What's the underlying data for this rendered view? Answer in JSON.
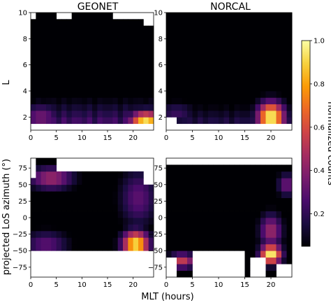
{
  "chart_data": [
    {
      "type": "heatmap",
      "title": "GEONET",
      "xlabel": "",
      "ylabel": "L",
      "xlim": [
        0,
        24
      ],
      "ylim": [
        1,
        10
      ],
      "x_ticks": [
        "0",
        "5",
        "10",
        "15",
        "20"
      ],
      "x_tick_values": [
        0,
        5,
        10,
        15,
        20
      ],
      "y_ticks": [
        "2",
        "4",
        "6",
        "8",
        "10"
      ],
      "y_tick_values": [
        2,
        4,
        6,
        8,
        10
      ],
      "hot_spots": [
        {
          "x": 22.5,
          "y": 1.6,
          "value": 0.95,
          "sx": 2.2,
          "sy": 0.6
        },
        {
          "x": 2.0,
          "y": 2.0,
          "value": 0.35,
          "sx": 2.5,
          "sy": 0.7
        }
      ],
      "base_gradient": {
        "low_y": 1.0,
        "high_y": 4.0,
        "value_at_low": 0.35
      },
      "empty_regions": [
        {
          "x0": 0,
          "x1": 24,
          "y0": 1.0,
          "y1": 1.4
        },
        {
          "x0": 0,
          "x1": 1,
          "y0": 9.3,
          "y1": 10
        },
        {
          "x0": 5,
          "x1": 8,
          "y0": 9.6,
          "y1": 10
        },
        {
          "x0": 16,
          "x1": 24,
          "y0": 9.7,
          "y1": 10
        },
        {
          "x0": 22,
          "x1": 24,
          "y0": 8.8,
          "y1": 10
        }
      ]
    },
    {
      "type": "heatmap",
      "title": "NORCAL",
      "xlabel": "",
      "ylabel": "",
      "xlim": [
        0,
        24
      ],
      "ylim": [
        1,
        10
      ],
      "x_ticks": [
        "0",
        "5",
        "10",
        "15",
        "20"
      ],
      "x_tick_values": [
        0,
        5,
        10,
        15,
        20
      ],
      "y_ticks": [
        "2",
        "4",
        "6",
        "8",
        "10"
      ],
      "y_tick_values": [
        2,
        4,
        6,
        8,
        10
      ],
      "hot_spots": [
        {
          "x": 20.0,
          "y": 2.0,
          "value": 1.0,
          "sx": 1.8,
          "sy": 0.8
        },
        {
          "x": 2.0,
          "y": 2.3,
          "value": 0.22,
          "sx": 2.5,
          "sy": 0.6
        }
      ],
      "base_gradient": {
        "low_y": 1.5,
        "high_y": 3.5,
        "value_at_low": 0.2
      },
      "empty_regions": [
        {
          "x0": 0,
          "x1": 24,
          "y0": 1.0,
          "y1": 1.6
        },
        {
          "x0": 0,
          "x1": 2,
          "y0": 1.0,
          "y1": 2.2
        }
      ]
    },
    {
      "type": "heatmap",
      "title": "",
      "xlabel": "",
      "ylabel": "projected LoS azimuth (°)",
      "xlim": [
        0,
        24
      ],
      "ylim": [
        -90,
        90
      ],
      "x_ticks": [
        "0",
        "5",
        "10",
        "15",
        "20"
      ],
      "x_tick_values": [
        0,
        5,
        10,
        15,
        20
      ],
      "y_ticks": [
        "−75",
        "−50",
        "−25",
        "0",
        "25",
        "50",
        "75"
      ],
      "y_tick_values": [
        -75,
        -50,
        -25,
        0,
        25,
        50,
        75
      ],
      "hot_spots": [
        {
          "x": 20.5,
          "y": -40,
          "value": 0.95,
          "sx": 1.8,
          "sy": 14
        },
        {
          "x": 4.0,
          "y": 60,
          "value": 0.45,
          "sx": 3.0,
          "sy": 12
        },
        {
          "x": 3.0,
          "y": -40,
          "value": 0.3,
          "sx": 3.0,
          "sy": 14
        },
        {
          "x": 21.0,
          "y": 30,
          "value": 0.3,
          "sx": 2.5,
          "sy": 30
        }
      ],
      "base_gradient": null,
      "empty_regions": [
        {
          "x0": 0,
          "x1": 24,
          "y0": -90,
          "y1": -52
        },
        {
          "x0": 0,
          "x1": 1,
          "y0": 65,
          "y1": 90
        },
        {
          "x0": 5,
          "x1": 24,
          "y0": 72,
          "y1": 90
        },
        {
          "x0": 22,
          "x1": 24,
          "y0": 55,
          "y1": 90
        },
        {
          "x0": 20,
          "x1": 21,
          "y0": -90,
          "y1": -62
        }
      ]
    },
    {
      "type": "heatmap",
      "title": "",
      "xlabel": "",
      "ylabel": "",
      "xlim": [
        0,
        24
      ],
      "ylim": [
        -90,
        90
      ],
      "x_ticks": [
        "0",
        "5",
        "10",
        "15",
        "20"
      ],
      "x_tick_values": [
        0,
        5,
        10,
        15,
        20
      ],
      "y_ticks": [
        "−75",
        "−50",
        "−25",
        "0",
        "25",
        "50",
        "75"
      ],
      "y_tick_values": [
        -75,
        -50,
        -25,
        0,
        25,
        50,
        75
      ],
      "hot_spots": [
        {
          "x": 20.0,
          "y": -55,
          "value": 1.0,
          "sx": 1.4,
          "sy": 10
        },
        {
          "x": 20.0,
          "y": -20,
          "value": 0.45,
          "sx": 1.5,
          "sy": 18
        },
        {
          "x": 3.0,
          "y": -65,
          "value": 0.55,
          "sx": 1.8,
          "sy": 8
        },
        {
          "x": 23.0,
          "y": 50,
          "value": 0.35,
          "sx": 1.2,
          "sy": 12
        }
      ],
      "base_gradient": null,
      "empty_regions": [
        {
          "x0": 0,
          "x1": 24,
          "y0": 78,
          "y1": 90
        },
        {
          "x0": 0,
          "x1": 2,
          "y0": -90,
          "y1": -65
        },
        {
          "x0": 5,
          "x1": 15,
          "y0": -90,
          "y1": -55
        },
        {
          "x0": 16,
          "x1": 19,
          "y0": -90,
          "y1": -65
        },
        {
          "x0": 21,
          "x1": 24,
          "y0": -90,
          "y1": -70
        }
      ]
    }
  ],
  "shared_xlabel": "MLT (hours)",
  "colorbar": {
    "label": "normalized counts",
    "min": 0.05,
    "max": 1.0,
    "ticks": [
      "0.2",
      "0.4",
      "0.6",
      "0.8",
      "1.0"
    ],
    "tick_values": [
      0.2,
      0.4,
      0.6,
      0.8,
      1.0
    ],
    "colormap": "inferno",
    "stops": [
      "#000004",
      "#1b0c41",
      "#4a0c6b",
      "#781c6d",
      "#a52c60",
      "#cf4446",
      "#ed6925",
      "#fb9b06",
      "#f7d13d",
      "#fcffa4"
    ]
  }
}
